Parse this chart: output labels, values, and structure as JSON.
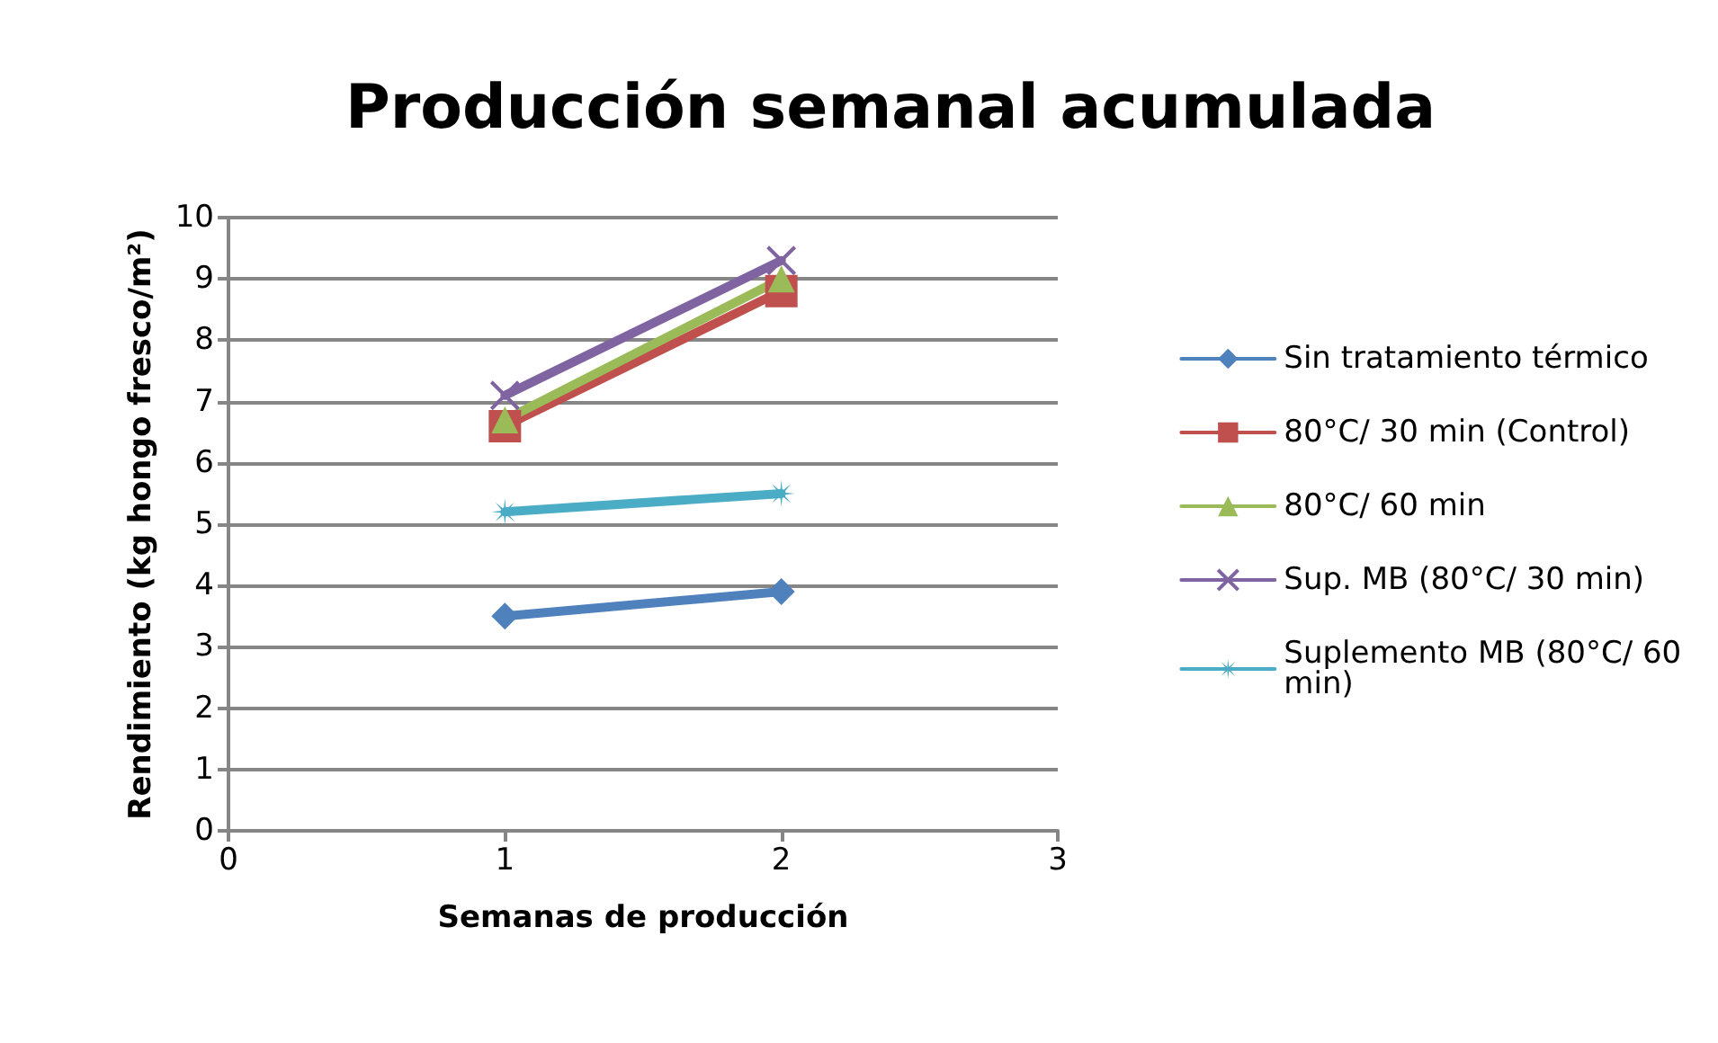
{
  "chart_data": {
    "type": "line",
    "title": "Producción semanal acumulada",
    "xlabel": "Semanas de producción",
    "ylabel": "Rendimiento (kg hongo fresco/m²)",
    "x": [
      1,
      2
    ],
    "xlim": [
      0,
      3
    ],
    "xticks": [
      0,
      1,
      2,
      3
    ],
    "ylim": [
      0,
      10
    ],
    "yticks": [
      0,
      1,
      2,
      3,
      4,
      5,
      6,
      7,
      8,
      9,
      10
    ],
    "grid": "y",
    "legend": "right",
    "line_style": "solid",
    "series": [
      {
        "name": "Sin tratamiento térmico",
        "color": "#4f81bd",
        "marker": "diamond",
        "values": [
          3.5,
          3.9
        ]
      },
      {
        "name": "80°C/ 30 min (Control)",
        "color": "#c0504d",
        "marker": "square",
        "values": [
          6.6,
          8.8
        ]
      },
      {
        "name": "80°C/ 60 min",
        "color": "#9bbb59",
        "marker": "triangle",
        "values": [
          6.7,
          9.0
        ]
      },
      {
        "name": "Sup. MB (80°C/ 30 min)",
        "color": "#8064a2",
        "marker": "cross",
        "values": [
          7.1,
          9.3
        ]
      },
      {
        "name": "Suplemento MB (80°C/ 60 min)",
        "color": "#4bacc6",
        "marker": "star",
        "values": [
          5.2,
          5.5
        ]
      }
    ]
  }
}
